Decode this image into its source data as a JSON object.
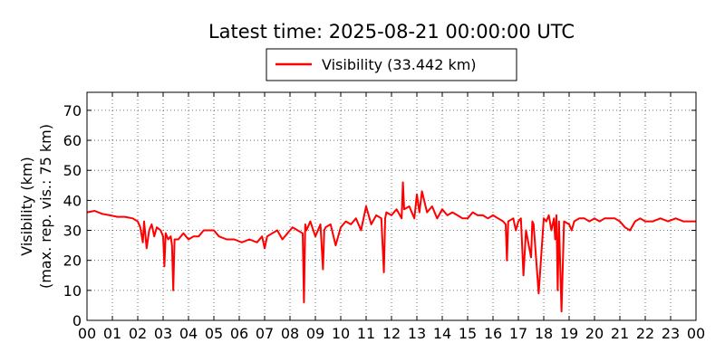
{
  "chart_data": {
    "type": "line",
    "title": "Latest time: 2025-08-21 00:00:00 UTC",
    "ylabel_line1": "Visibility (km)",
    "ylabel_line2": "(max. rep. vis.: 75 km)",
    "xlabel": "",
    "xlim": [
      0,
      24
    ],
    "ylim": [
      0,
      76
    ],
    "grid": true,
    "legend": {
      "placement": "top-center",
      "entries": [
        "Visibility (33.442 km)"
      ]
    },
    "x_ticks": [
      "00",
      "01",
      "02",
      "03",
      "04",
      "05",
      "06",
      "07",
      "08",
      "09",
      "10",
      "11",
      "12",
      "13",
      "14",
      "15",
      "16",
      "17",
      "18",
      "19",
      "20",
      "21",
      "22",
      "23",
      "00"
    ],
    "y_ticks": [
      0,
      10,
      20,
      30,
      40,
      50,
      60,
      70
    ],
    "series": [
      {
        "name": "Visibility (33.442 km)",
        "color": "#ff0000",
        "x_unit": "hours UTC",
        "x": [
          0.0,
          0.3,
          0.6,
          0.9,
          1.2,
          1.5,
          1.8,
          2.0,
          2.1,
          2.2,
          2.25,
          2.35,
          2.45,
          2.55,
          2.65,
          2.75,
          2.9,
          3.0,
          3.05,
          3.1,
          3.2,
          3.3,
          3.35,
          3.4,
          3.45,
          3.6,
          3.8,
          4.0,
          4.2,
          4.4,
          4.6,
          4.8,
          5.0,
          5.2,
          5.5,
          5.8,
          6.1,
          6.4,
          6.7,
          6.9,
          7.0,
          7.1,
          7.3,
          7.5,
          7.7,
          7.9,
          8.1,
          8.3,
          8.5,
          8.55,
          8.6,
          8.65,
          8.8,
          9.0,
          9.2,
          9.3,
          9.35,
          9.4,
          9.6,
          9.8,
          10.0,
          10.2,
          10.4,
          10.6,
          10.8,
          11.0,
          11.2,
          11.4,
          11.6,
          11.7,
          11.75,
          11.8,
          12.0,
          12.2,
          12.4,
          12.45,
          12.5,
          12.7,
          12.9,
          13.0,
          13.1,
          13.2,
          13.4,
          13.6,
          13.8,
          14.0,
          14.2,
          14.4,
          14.6,
          14.8,
          15.0,
          15.2,
          15.4,
          15.6,
          15.8,
          16.0,
          16.2,
          16.4,
          16.5,
          16.55,
          16.6,
          16.8,
          16.9,
          17.0,
          17.1,
          17.2,
          17.3,
          17.5,
          17.55,
          17.6,
          17.8,
          18.0,
          18.1,
          18.2,
          18.3,
          18.4,
          18.45,
          18.5,
          18.55,
          18.6,
          18.7,
          18.8,
          19.0,
          19.1,
          19.2,
          19.4,
          19.6,
          19.8,
          20.0,
          20.2,
          20.4,
          20.6,
          20.8,
          21.0,
          21.2,
          21.4,
          21.6,
          21.8,
          22.0,
          22.3,
          22.6,
          22.9,
          23.2,
          23.5,
          23.8,
          24.0
        ],
        "y": [
          36,
          36.5,
          35.5,
          35,
          34.5,
          34.5,
          34,
          33,
          31,
          26,
          33,
          24,
          30,
          32,
          28,
          31,
          30,
          28,
          18,
          29,
          27,
          28,
          25,
          10,
          27,
          27,
          29,
          27,
          28,
          28,
          30,
          30,
          30,
          28,
          27,
          27,
          26,
          27,
          26,
          28,
          24,
          28,
          29,
          30,
          27,
          29,
          31,
          30,
          29,
          6,
          32,
          30,
          33,
          28,
          32,
          17,
          30,
          31,
          32,
          25,
          31,
          33,
          32,
          34,
          30,
          38,
          32,
          35,
          34,
          16,
          34,
          36,
          35,
          37,
          34,
          46,
          37,
          38,
          34,
          42,
          36,
          43,
          36,
          38,
          34,
          37,
          35,
          36,
          35,
          34,
          34,
          36,
          35,
          35,
          34,
          35,
          34,
          33,
          32,
          20,
          33,
          34,
          30,
          33,
          34,
          15,
          30,
          21,
          33,
          32,
          9,
          34,
          33,
          35,
          30,
          34,
          27,
          35,
          10,
          33,
          3,
          33,
          32,
          30,
          33,
          34,
          34,
          33,
          34,
          33,
          34,
          34,
          34,
          33,
          31,
          30,
          33,
          34,
          33,
          33,
          34,
          33,
          34,
          33,
          33,
          33
        ]
      }
    ]
  }
}
